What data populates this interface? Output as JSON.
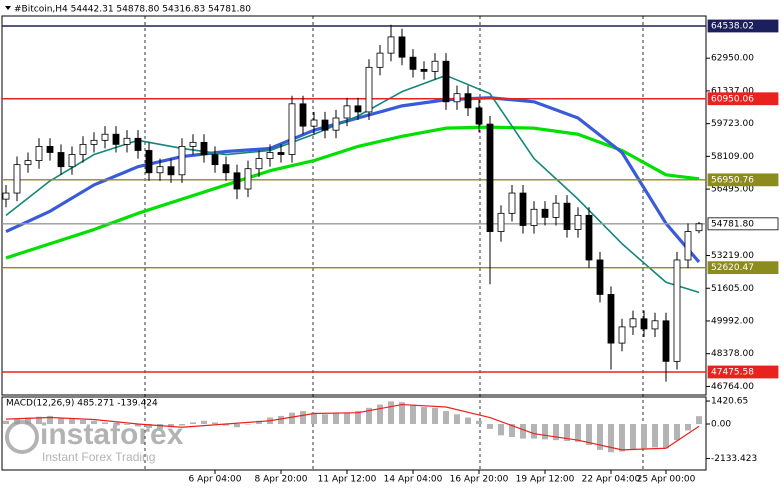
{
  "chart_data": [
    {
      "type": "candlestick",
      "header": "#Bitcoin,H4  54442.31 54878.80 54316.83 54781.80",
      "categories": [
        null,
        null,
        null,
        null,
        null,
        null,
        null,
        null,
        null,
        null,
        null,
        null,
        null,
        null,
        null,
        null,
        null,
        null,
        null,
        "6 Apr 04:00",
        null,
        null,
        null,
        null,
        null,
        "8 Apr 20:00",
        null,
        null,
        null,
        null,
        null,
        "11 Apr 12:00",
        null,
        null,
        null,
        null,
        null,
        "14 Apr 04:00",
        null,
        null,
        null,
        null,
        null,
        "16 Apr 20:00",
        null,
        null,
        null,
        null,
        null,
        "19 Apr 12:00",
        null,
        null,
        null,
        null,
        null,
        "22 Apr 04:00",
        null,
        null,
        null,
        null,
        "25 Apr 00:00",
        null,
        null,
        null
      ],
      "open": [
        56000,
        56300,
        57700,
        57900,
        58600,
        58300,
        57600,
        58200,
        58700,
        58900,
        59200,
        58700,
        59000,
        58400,
        57300,
        57600,
        57200,
        58600,
        58800,
        58200,
        57700,
        57300,
        56500,
        57500,
        58000,
        58300,
        58200,
        60700,
        59600,
        59900,
        59400,
        60000,
        60600,
        60300,
        62500,
        63200,
        64000,
        63000,
        62400,
        62300,
        62800,
        60800,
        61200,
        60500,
        59700,
        54400,
        55300,
        56300,
        54700,
        55500,
        55100,
        55800,
        54500,
        55200,
        53000,
        51300,
        48900,
        49700,
        50100,
        49600,
        50000,
        48000,
        53000,
        54442.31
      ],
      "high": [
        56700,
        58100,
        58300,
        59000,
        59000,
        58700,
        58600,
        59100,
        59300,
        59600,
        59600,
        59400,
        59400,
        58800,
        58000,
        58000,
        59000,
        59200,
        59200,
        58600,
        58100,
        57700,
        57900,
        58400,
        58700,
        58700,
        61100,
        61100,
        60300,
        60300,
        60400,
        61000,
        61000,
        62900,
        63600,
        64600,
        64400,
        63400,
        62800,
        63200,
        63200,
        61600,
        61600,
        60900,
        60100,
        55700,
        56700,
        56700,
        55900,
        55900,
        56200,
        56200,
        55600,
        55600,
        53400,
        51700,
        50100,
        50500,
        50500,
        50400,
        50400,
        53400,
        54800,
        54878.8
      ],
      "low": [
        55600,
        55900,
        57300,
        57500,
        57900,
        57200,
        57200,
        57800,
        58300,
        58500,
        58300,
        58300,
        58000,
        56900,
        56900,
        56800,
        56800,
        58200,
        57800,
        57300,
        56900,
        56000,
        56100,
        57100,
        57600,
        57800,
        57800,
        59200,
        59200,
        59000,
        59000,
        59600,
        59900,
        59900,
        62100,
        62800,
        62600,
        62000,
        61900,
        61900,
        60400,
        60400,
        60100,
        59300,
        51800,
        53900,
        54900,
        54300,
        54300,
        54700,
        54700,
        54100,
        54100,
        52600,
        50900,
        47600,
        48500,
        49300,
        49200,
        49200,
        47000,
        47600,
        52600,
        54316.83
      ],
      "close": [
        56300,
        57700,
        57900,
        58600,
        58300,
        57600,
        58200,
        58700,
        58900,
        59200,
        58700,
        59000,
        58400,
        57300,
        57600,
        57200,
        58600,
        58800,
        58200,
        57700,
        57300,
        56500,
        57500,
        58000,
        58300,
        58200,
        60700,
        59600,
        59900,
        59400,
        60000,
        60600,
        60300,
        62500,
        63200,
        64000,
        63000,
        62400,
        62300,
        62800,
        60800,
        61200,
        60500,
        59700,
        54400,
        55300,
        56300,
        54700,
        55500,
        55100,
        55800,
        54500,
        55200,
        53000,
        51300,
        48900,
        49700,
        50100,
        49600,
        50000,
        48000,
        53000,
        54400,
        54781.8
      ],
      "ylim": [
        46341,
        65031
      ],
      "yticks": [
        {
          "value": 62950,
          "label": "62950.00"
        },
        {
          "value": 61337,
          "label": "61337.00"
        },
        {
          "value": 59723,
          "label": "59723.00"
        },
        {
          "value": 58109,
          "label": "58109.00"
        },
        {
          "value": 56495,
          "label": "56495.00"
        },
        {
          "value": 53219,
          "label": "53219.00"
        },
        {
          "value": 51605,
          "label": "51605.00"
        },
        {
          "value": 49992,
          "label": "49992.00"
        },
        {
          "value": 48378,
          "label": "48378.00"
        },
        {
          "value": 46764,
          "label": "46764.00"
        }
      ],
      "levels": [
        {
          "value": 64538.02,
          "label": "64538.02",
          "color": "#1b1f5c"
        },
        {
          "value": 60950.06,
          "label": "60950.06",
          "color": "#e8231f"
        },
        {
          "value": 56950.76,
          "label": "56950.76",
          "color": "#8c8c1e"
        },
        {
          "value": 54781.8,
          "label": "54781.80",
          "color": "#9a9a9a"
        },
        {
          "value": 52620.47,
          "label": "52620.47",
          "color": "#8c8c1e"
        },
        {
          "value": 47475.58,
          "label": "47475.58",
          "color": "#e8231f"
        }
      ],
      "series": [
        {
          "color": "#00e000",
          "x": [
            0,
            4,
            8,
            12,
            16,
            20,
            24,
            28,
            32,
            36,
            40,
            44,
            48,
            52,
            56,
            60,
            63
          ],
          "values": [
            53100,
            53800,
            54500,
            55300,
            56000,
            56700,
            57400,
            57900,
            58600,
            59100,
            59500,
            59550,
            59500,
            59200,
            58400,
            57200,
            57000
          ]
        },
        {
          "color": "#3a5bd9",
          "x": [
            0,
            4,
            8,
            12,
            16,
            20,
            24,
            28,
            32,
            36,
            40,
            44,
            48,
            52,
            56,
            60,
            63
          ],
          "values": [
            54400,
            55400,
            56700,
            57600,
            58100,
            58350,
            58500,
            59400,
            60000,
            60600,
            60900,
            61000,
            60800,
            60000,
            58300,
            54800,
            52900
          ]
        },
        {
          "color": "#12877a",
          "x": [
            0,
            4,
            8,
            12,
            16,
            20,
            24,
            28,
            32,
            36,
            40,
            44,
            48,
            52,
            56,
            60,
            63
          ],
          "values": [
            55200,
            56900,
            58200,
            58900,
            58500,
            58200,
            58400,
            59200,
            60100,
            61300,
            62100,
            61200,
            58000,
            56000,
            53800,
            51900,
            51400
          ]
        }
      ]
    },
    {
      "type": "macd",
      "label": "MACD(12,26,9) 485.271 -139.424",
      "color": "#b4b4b4",
      "values": [
        200,
        350,
        400,
        450,
        500,
        400,
        300,
        250,
        200,
        100,
        50,
        -50,
        -150,
        -250,
        -300,
        -200,
        -100,
        100,
        200,
        100,
        -100,
        -200,
        0,
        200,
        400,
        500,
        700,
        800,
        700,
        600,
        650,
        700,
        800,
        1000,
        1200,
        1400,
        1350,
        1200,
        1050,
        1000,
        800,
        600,
        400,
        200,
        -300,
        -700,
        -800,
        -900,
        -900,
        -950,
        -1000,
        -1050,
        -1100,
        -1300,
        -1600,
        -1750,
        -1700,
        -1600,
        -1500,
        -1450,
        -1500,
        -1000,
        -400,
        485
      ],
      "signal": {
        "color": "#e8231f",
        "x": [
          0,
          4,
          8,
          12,
          16,
          20,
          24,
          28,
          32,
          36,
          40,
          44,
          48,
          52,
          56,
          60,
          63
        ],
        "values": [
          300,
          400,
          280,
          0,
          -200,
          0,
          200,
          650,
          700,
          1200,
          1050,
          400,
          -600,
          -1000,
          -1600,
          -1500,
          -139.424
        ]
      },
      "ylim": [
        -2843,
        1669
      ],
      "yticks": [
        {
          "value": 1420.65,
          "label": "1420.65"
        },
        {
          "value": 0,
          "label": "0.00"
        },
        -2133.423
      ]
    }
  ],
  "watermark": {
    "brand": "instaforex",
    "slogan": "Instant Forex Trading"
  }
}
